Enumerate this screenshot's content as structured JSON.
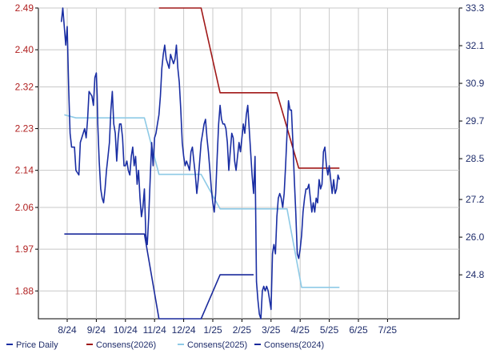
{
  "chart_data": {
    "type": "line",
    "x_ticks": [
      "8/24",
      "9/24",
      "10/24",
      "11/24",
      "12/24",
      "1/25",
      "2/25",
      "3/25",
      "4/25",
      "5/25",
      "6/25",
      "7/25"
    ],
    "y_left": {
      "ticks": [
        "1.88",
        "1.97",
        "2.06",
        "2.14",
        "2.23",
        "2.32",
        "2.40",
        "2.49"
      ],
      "range": [
        1.82,
        2.49
      ]
    },
    "y_right": {
      "ticks": [
        "24.8",
        "26.0",
        "27.2",
        "28.5",
        "29.7",
        "30.9",
        "32.1",
        "33.3"
      ],
      "range": [
        23.4,
        33.3
      ]
    },
    "grid": true,
    "legend_position": "bottom",
    "series": [
      {
        "name": "Price Daily",
        "axis": "left",
        "color": "#1a2ea3",
        "points": [
          [
            -0.2,
            2.46
          ],
          [
            -0.15,
            2.49
          ],
          [
            -0.05,
            2.41
          ],
          [
            0.0,
            2.45
          ],
          [
            0.05,
            2.32
          ],
          [
            0.1,
            2.22
          ],
          [
            0.15,
            2.19
          ],
          [
            0.25,
            2.19
          ],
          [
            0.3,
            2.14
          ],
          [
            0.4,
            2.13
          ],
          [
            0.45,
            2.2
          ],
          [
            0.55,
            2.22
          ],
          [
            0.6,
            2.23
          ],
          [
            0.65,
            2.21
          ],
          [
            0.7,
            2.25
          ],
          [
            0.75,
            2.31
          ],
          [
            0.85,
            2.3
          ],
          [
            0.9,
            2.28
          ],
          [
            0.95,
            2.34
          ],
          [
            1.0,
            2.35
          ],
          [
            1.03,
            2.3
          ],
          [
            1.05,
            2.24
          ],
          [
            1.1,
            2.16
          ],
          [
            1.15,
            2.1
          ],
          [
            1.2,
            2.08
          ],
          [
            1.25,
            2.07
          ],
          [
            1.3,
            2.1
          ],
          [
            1.35,
            2.14
          ],
          [
            1.4,
            2.17
          ],
          [
            1.45,
            2.2
          ],
          [
            1.5,
            2.27
          ],
          [
            1.55,
            2.31
          ],
          [
            1.6,
            2.24
          ],
          [
            1.65,
            2.22
          ],
          [
            1.7,
            2.16
          ],
          [
            1.75,
            2.21
          ],
          [
            1.8,
            2.24
          ],
          [
            1.85,
            2.24
          ],
          [
            1.9,
            2.21
          ],
          [
            1.95,
            2.15
          ],
          [
            2.0,
            2.15
          ],
          [
            2.05,
            2.16
          ],
          [
            2.1,
            2.14
          ],
          [
            2.15,
            2.13
          ],
          [
            2.2,
            2.17
          ],
          [
            2.25,
            2.19
          ],
          [
            2.3,
            2.15
          ],
          [
            2.35,
            2.17
          ],
          [
            2.4,
            2.11
          ],
          [
            2.45,
            2.14
          ],
          [
            2.5,
            2.08
          ],
          [
            2.55,
            2.04
          ],
          [
            2.6,
            2.06
          ],
          [
            2.65,
            2.1
          ],
          [
            2.7,
            2.0
          ],
          [
            2.75,
            1.98
          ],
          [
            2.8,
            2.04
          ],
          [
            2.85,
            2.12
          ],
          [
            2.9,
            2.2
          ],
          [
            2.95,
            2.15
          ],
          [
            3.0,
            2.21
          ],
          [
            3.05,
            2.22
          ],
          [
            3.1,
            2.24
          ],
          [
            3.15,
            2.26
          ],
          [
            3.2,
            2.3
          ],
          [
            3.25,
            2.36
          ],
          [
            3.3,
            2.39
          ],
          [
            3.35,
            2.41
          ],
          [
            3.4,
            2.38
          ],
          [
            3.45,
            2.37
          ],
          [
            3.5,
            2.36
          ],
          [
            3.55,
            2.39
          ],
          [
            3.6,
            2.38
          ],
          [
            3.65,
            2.37
          ],
          [
            3.7,
            2.38
          ],
          [
            3.75,
            2.41
          ],
          [
            3.8,
            2.36
          ],
          [
            3.85,
            2.33
          ],
          [
            3.9,
            2.27
          ],
          [
            3.95,
            2.2
          ],
          [
            4.0,
            2.17
          ],
          [
            4.05,
            2.15
          ],
          [
            4.1,
            2.16
          ],
          [
            4.15,
            2.15
          ],
          [
            4.2,
            2.14
          ],
          [
            4.25,
            2.18
          ],
          [
            4.3,
            2.19
          ],
          [
            4.35,
            2.16
          ],
          [
            4.4,
            2.13
          ],
          [
            4.45,
            2.09
          ],
          [
            4.5,
            2.12
          ],
          [
            4.55,
            2.16
          ],
          [
            4.6,
            2.2
          ],
          [
            4.65,
            2.22
          ],
          [
            4.7,
            2.24
          ],
          [
            4.75,
            2.25
          ],
          [
            4.8,
            2.21
          ],
          [
            4.85,
            2.18
          ],
          [
            4.9,
            2.14
          ],
          [
            4.95,
            2.1
          ],
          [
            5.0,
            2.07
          ],
          [
            5.05,
            2.05
          ],
          [
            5.1,
            2.09
          ],
          [
            5.15,
            2.17
          ],
          [
            5.2,
            2.24
          ],
          [
            5.25,
            2.28
          ],
          [
            5.3,
            2.25
          ],
          [
            5.35,
            2.24
          ],
          [
            5.4,
            2.24
          ],
          [
            5.45,
            2.23
          ],
          [
            5.5,
            2.2
          ],
          [
            5.55,
            2.14
          ],
          [
            5.6,
            2.18
          ],
          [
            5.65,
            2.22
          ],
          [
            5.7,
            2.21
          ],
          [
            5.75,
            2.16
          ],
          [
            5.8,
            2.14
          ],
          [
            5.85,
            2.17
          ],
          [
            5.9,
            2.2
          ],
          [
            5.95,
            2.18
          ],
          [
            6.0,
            2.21
          ],
          [
            6.05,
            2.24
          ],
          [
            6.1,
            2.22
          ],
          [
            6.15,
            2.26
          ],
          [
            6.2,
            2.28
          ],
          [
            6.25,
            2.23
          ],
          [
            6.3,
            2.18
          ],
          [
            6.35,
            2.13
          ],
          [
            6.4,
            2.09
          ],
          [
            6.45,
            2.17
          ],
          [
            6.5,
            1.9
          ],
          [
            6.55,
            1.86
          ],
          [
            6.6,
            1.83
          ],
          [
            6.65,
            1.82
          ],
          [
            6.7,
            1.88
          ],
          [
            6.75,
            1.89
          ],
          [
            6.8,
            1.88
          ],
          [
            6.85,
            1.89
          ],
          [
            6.9,
            1.88
          ],
          [
            6.95,
            1.86
          ],
          [
            7.0,
            1.84
          ],
          [
            7.05,
            1.96
          ],
          [
            7.1,
            1.98
          ],
          [
            7.15,
            1.96
          ],
          [
            7.2,
            2.04
          ],
          [
            7.25,
            2.08
          ],
          [
            7.3,
            2.09
          ],
          [
            7.35,
            2.08
          ],
          [
            7.4,
            2.06
          ],
          [
            7.45,
            2.09
          ],
          [
            7.5,
            2.15
          ],
          [
            7.55,
            2.22
          ],
          [
            7.6,
            2.29
          ],
          [
            7.65,
            2.27
          ],
          [
            7.7,
            2.27
          ],
          [
            7.75,
            2.2
          ],
          [
            7.8,
            2.12
          ],
          [
            7.85,
            2.05
          ],
          [
            7.9,
            1.96
          ],
          [
            7.95,
            1.95
          ],
          [
            8.0,
            1.97
          ],
          [
            8.05,
            2.0
          ],
          [
            8.1,
            2.05
          ],
          [
            8.15,
            2.08
          ],
          [
            8.2,
            2.1
          ],
          [
            8.25,
            2.1
          ],
          [
            8.3,
            2.11
          ],
          [
            8.35,
            2.08
          ],
          [
            8.4,
            2.05
          ],
          [
            8.45,
            2.07
          ],
          [
            8.5,
            2.05
          ],
          [
            8.55,
            2.08
          ],
          [
            8.6,
            2.07
          ],
          [
            8.65,
            2.12
          ],
          [
            8.7,
            2.1
          ],
          [
            8.75,
            2.11
          ],
          [
            8.8,
            2.18
          ],
          [
            8.85,
            2.19
          ],
          [
            8.9,
            2.15
          ],
          [
            8.95,
            2.13
          ],
          [
            9.0,
            2.15
          ],
          [
            9.05,
            2.12
          ],
          [
            9.1,
            2.09
          ],
          [
            9.15,
            2.12
          ],
          [
            9.2,
            2.09
          ],
          [
            9.25,
            2.1
          ],
          [
            9.3,
            2.13
          ],
          [
            9.35,
            2.12
          ]
        ]
      },
      {
        "name": "Consens(2026)",
        "axis": "right",
        "color": "#a01818",
        "points": [
          [
            3.15,
            33.3
          ],
          [
            3.5,
            33.3
          ],
          [
            4.1,
            33.3
          ],
          [
            4.6,
            33.3
          ],
          [
            5.25,
            30.6
          ],
          [
            6.1,
            30.6
          ],
          [
            6.8,
            30.6
          ],
          [
            7.2,
            30.6
          ],
          [
            7.95,
            28.2
          ],
          [
            8.6,
            28.2
          ],
          [
            9.35,
            28.2
          ]
        ]
      },
      {
        "name": "Consens(2025)",
        "axis": "right",
        "color": "#8ecae6",
        "points": [
          [
            -0.1,
            29.9
          ],
          [
            0.3,
            29.8
          ],
          [
            1.0,
            29.8
          ],
          [
            2.0,
            29.8
          ],
          [
            2.65,
            29.8
          ],
          [
            3.15,
            28.0
          ],
          [
            4.0,
            28.0
          ],
          [
            4.6,
            28.0
          ],
          [
            5.25,
            26.9
          ],
          [
            6.0,
            26.9
          ],
          [
            7.0,
            26.9
          ],
          [
            7.55,
            26.9
          ],
          [
            8.05,
            24.4
          ],
          [
            9.0,
            24.4
          ],
          [
            9.35,
            24.4
          ]
        ]
      },
      {
        "name": "Consens(2024)",
        "axis": "right",
        "color": "#1a2a9c",
        "points": [
          [
            -0.1,
            26.1
          ],
          [
            0.5,
            26.1
          ],
          [
            1.5,
            26.1
          ],
          [
            2.65,
            26.1
          ],
          [
            3.15,
            23.4
          ],
          [
            4.0,
            23.4
          ],
          [
            4.6,
            23.4
          ],
          [
            5.25,
            24.8
          ],
          [
            6.0,
            24.8
          ],
          [
            6.4,
            24.8
          ]
        ]
      }
    ],
    "legend": [
      "Price Daily",
      "Consens(2026)",
      "Consens(2025)",
      "Consens(2024)"
    ]
  }
}
